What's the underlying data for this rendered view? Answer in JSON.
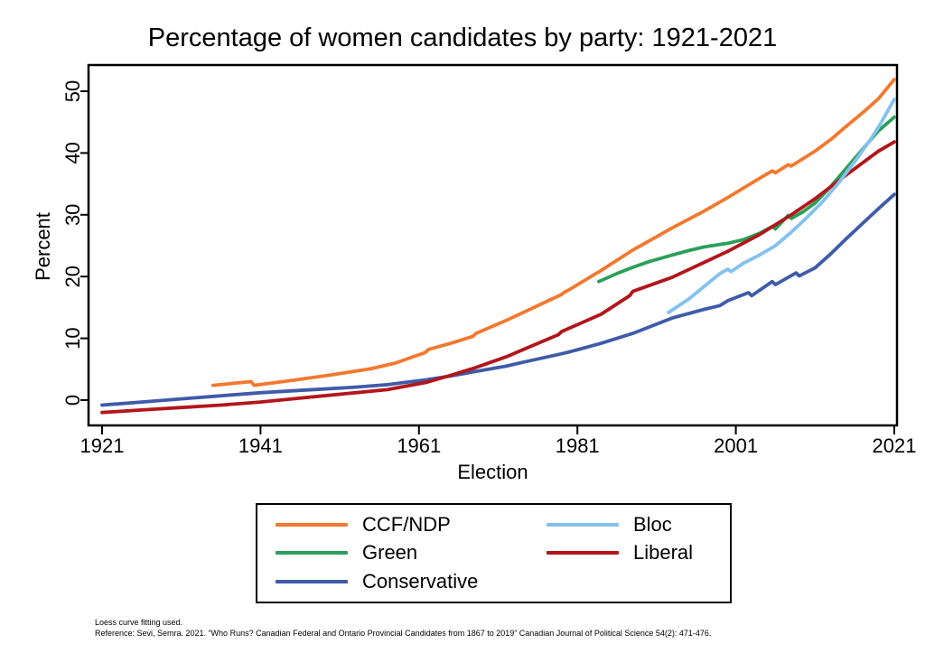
{
  "chart_data": {
    "type": "line",
    "title": "Percentage of women candidates by party: 1921-2021",
    "xlabel": "Election",
    "ylabel": "Percent",
    "x_ticks": [
      1921,
      1941,
      1961,
      1981,
      2001,
      2021
    ],
    "y_ticks": [
      0,
      10,
      20,
      30,
      40,
      50
    ],
    "xlim": [
      1919,
      2023
    ],
    "ylim": [
      -4,
      54
    ],
    "grid": false,
    "legend_position": "bottom-center-boxed",
    "frame_color": "#000000",
    "background_color": "#ffffff",
    "fit_note": "loess",
    "series": [
      {
        "name": "CCF/NDP",
        "color": "#f2792f",
        "points": [
          [
            1935,
            2.4
          ],
          [
            1939.8,
            3.0
          ],
          [
            1940.2,
            2.4
          ],
          [
            1945,
            3.2
          ],
          [
            1950,
            4.1
          ],
          [
            1955,
            5.1
          ],
          [
            1958,
            6.0
          ],
          [
            1961.8,
            7.7
          ],
          [
            1962.2,
            8.2
          ],
          [
            1965,
            9.2
          ],
          [
            1967.8,
            10.3
          ],
          [
            1968.2,
            10.8
          ],
          [
            1972,
            12.9
          ],
          [
            1975,
            14.7
          ],
          [
            1979,
            17.1
          ],
          [
            1979.4,
            17.5
          ],
          [
            1980,
            17.9
          ],
          [
            1984,
            21.0
          ],
          [
            1988,
            24.3
          ],
          [
            1993,
            27.9
          ],
          [
            1997,
            30.6
          ],
          [
            2000,
            32.8
          ],
          [
            2004,
            35.9
          ],
          [
            2005.6,
            37.1
          ],
          [
            2006,
            36.8
          ],
          [
            2007.6,
            38.1
          ],
          [
            2008,
            37.9
          ],
          [
            2009,
            38.7
          ],
          [
            2011,
            40.3
          ],
          [
            2013,
            42.2
          ],
          [
            2015,
            44.4
          ],
          [
            2017,
            46.5
          ],
          [
            2019,
            48.8
          ],
          [
            2021,
            51.9
          ]
        ]
      },
      {
        "name": "Green",
        "color": "#2aa05a",
        "points": [
          [
            1983.7,
            19.2
          ],
          [
            1986,
            20.5
          ],
          [
            1988,
            21.5
          ],
          [
            1990,
            22.4
          ],
          [
            1993,
            23.5
          ],
          [
            1995,
            24.2
          ],
          [
            1997,
            24.8
          ],
          [
            2000,
            25.4
          ],
          [
            2002,
            26.0
          ],
          [
            2004,
            27.0
          ],
          [
            2005.6,
            28.1
          ],
          [
            2006,
            27.7
          ],
          [
            2007.6,
            29.9
          ],
          [
            2008,
            29.4
          ],
          [
            2009.5,
            30.5
          ],
          [
            2011,
            31.9
          ],
          [
            2013,
            34.6
          ],
          [
            2015,
            37.6
          ],
          [
            2017,
            40.6
          ],
          [
            2019,
            43.6
          ],
          [
            2021,
            45.8
          ]
        ]
      },
      {
        "name": "Conservative",
        "color": "#3f5ba9",
        "points": [
          [
            1921,
            -0.8
          ],
          [
            1926,
            -0.3
          ],
          [
            1931,
            0.2
          ],
          [
            1936,
            0.7
          ],
          [
            1941,
            1.2
          ],
          [
            1945,
            1.5
          ],
          [
            1949,
            1.8
          ],
          [
            1953,
            2.1
          ],
          [
            1957,
            2.5
          ],
          [
            1962,
            3.3
          ],
          [
            1965,
            3.9
          ],
          [
            1968,
            4.6
          ],
          [
            1972,
            5.5
          ],
          [
            1974,
            6.1
          ],
          [
            1979,
            7.5
          ],
          [
            1980,
            7.8
          ],
          [
            1984,
            9.2
          ],
          [
            1988,
            10.8
          ],
          [
            1993,
            13.3
          ],
          [
            1997,
            14.7
          ],
          [
            1999,
            15.3
          ],
          [
            2000,
            16.1
          ],
          [
            2002.6,
            17.4
          ],
          [
            2003,
            16.9
          ],
          [
            2005.6,
            19.2
          ],
          [
            2006,
            18.7
          ],
          [
            2008.6,
            20.6
          ],
          [
            2009,
            20.1
          ],
          [
            2011,
            21.4
          ],
          [
            2013,
            23.7
          ],
          [
            2015,
            26.2
          ],
          [
            2017,
            28.6
          ],
          [
            2019,
            31.0
          ],
          [
            2021,
            33.3
          ]
        ]
      },
      {
        "name": "Bloc",
        "color": "#84c1ee",
        "points": [
          [
            1992.5,
            14.2
          ],
          [
            1995,
            16.3
          ],
          [
            1997,
            18.4
          ],
          [
            1999,
            20.5
          ],
          [
            2000,
            21.2
          ],
          [
            2000.4,
            20.8
          ],
          [
            2002,
            22.2
          ],
          [
            2004,
            23.5
          ],
          [
            2006,
            25.0
          ],
          [
            2008,
            27.2
          ],
          [
            2010,
            29.6
          ],
          [
            2012,
            32.2
          ],
          [
            2014,
            35.2
          ],
          [
            2016,
            38.6
          ],
          [
            2018,
            42.2
          ],
          [
            2019,
            44.2
          ],
          [
            2020,
            46.4
          ],
          [
            2021,
            48.7
          ]
        ]
      },
      {
        "name": "Liberal",
        "color": "#b2161b",
        "points": [
          [
            1921,
            -2.0
          ],
          [
            1926,
            -1.6
          ],
          [
            1931,
            -1.2
          ],
          [
            1936,
            -0.8
          ],
          [
            1941,
            -0.3
          ],
          [
            1945,
            0.2
          ],
          [
            1949,
            0.7
          ],
          [
            1953,
            1.2
          ],
          [
            1957,
            1.7
          ],
          [
            1962,
            2.9
          ],
          [
            1965,
            4.0
          ],
          [
            1968,
            5.2
          ],
          [
            1972,
            7.0
          ],
          [
            1974,
            8.1
          ],
          [
            1978.6,
            10.6
          ],
          [
            1979,
            11.1
          ],
          [
            1984,
            13.9
          ],
          [
            1987.6,
            16.9
          ],
          [
            1988,
            17.6
          ],
          [
            1993,
            19.9
          ],
          [
            1997,
            22.3
          ],
          [
            2000,
            24.1
          ],
          [
            2004,
            26.8
          ],
          [
            2008,
            30.0
          ],
          [
            2011,
            32.6
          ],
          [
            2015,
            36.5
          ],
          [
            2019,
            40.3
          ],
          [
            2021,
            41.8
          ]
        ]
      }
    ],
    "draw_order": [
      0,
      1,
      2,
      4,
      3
    ],
    "notes": [
      "Loess curve fitting used.",
      "Reference: Sevi, Semra. 2021. “Who Runs? Canadian Federal and Ontario Provincial Candidates from 1867 to 2019” Canadian Journal of Political Science 54(2): 471-476."
    ]
  }
}
